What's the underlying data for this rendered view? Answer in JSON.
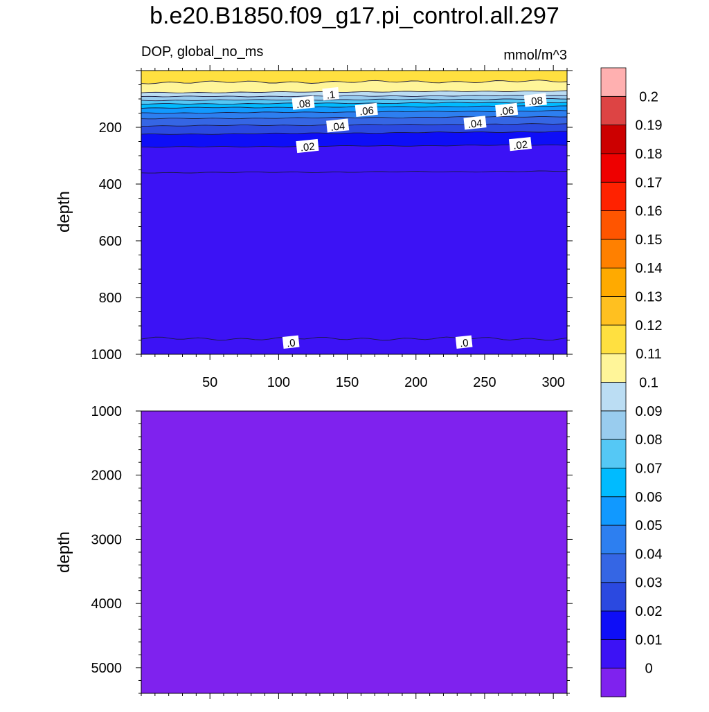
{
  "chart_data": {
    "type": "contour",
    "title": "b.e20.B1850.f09_g17.pi_control.all.297",
    "variable_label": "DOP, global_no_ms",
    "units_label": "mmol/m^3",
    "grid": false,
    "colorbar": {
      "position": "right",
      "levels": [
        "0",
        "0.01",
        "0.02",
        "0.03",
        "0.04",
        "0.05",
        "0.06",
        "0.07",
        "0.08",
        "0.09",
        "0.1",
        "0.11",
        "0.12",
        "0.13",
        "0.14",
        "0.15",
        "0.16",
        "0.17",
        "0.18",
        "0.19",
        "0.2"
      ],
      "colors": [
        "#7f22ee",
        "#3c12f5",
        "#0e0ef7",
        "#2b49e0",
        "#3566e4",
        "#2d7ff0",
        "#1199ff",
        "#00bbff",
        "#55c8f5",
        "#99ccee",
        "#bbddf3",
        "#fff599",
        "#ffe040",
        "#ffc020",
        "#ffaa00",
        "#ff8000",
        "#ff5500",
        "#ff2200",
        "#ee0000",
        "#cc0000",
        "#dd4444",
        "#ffb0b0"
      ]
    },
    "panels": [
      {
        "name": "upper",
        "xlim": [
          0,
          310
        ],
        "ylim": [
          0,
          1000
        ],
        "y_inverted": true,
        "ylabel": "depth",
        "x_ticks": [
          "50",
          "100",
          "150",
          "200",
          "250",
          "300"
        ],
        "y_ticks": [
          "200",
          "400",
          "600",
          "800",
          "1000"
        ],
        "contour_lines": [
          {
            "level": 0.11,
            "left_depth": 42,
            "right_depth": 38
          },
          {
            "level": 0.1,
            "left_depth": 78,
            "right_depth": 72
          },
          {
            "level": 0.09,
            "left_depth": 92,
            "right_depth": 88
          },
          {
            "level": 0.08,
            "left_depth": 105,
            "right_depth": 100
          },
          {
            "level": 0.07,
            "left_depth": 118,
            "right_depth": 112
          },
          {
            "level": 0.06,
            "left_depth": 132,
            "right_depth": 125
          },
          {
            "level": 0.05,
            "left_depth": 150,
            "right_depth": 142
          },
          {
            "level": 0.04,
            "left_depth": 170,
            "right_depth": 162
          },
          {
            "level": 0.03,
            "left_depth": 195,
            "right_depth": 188
          },
          {
            "level": 0.02,
            "left_depth": 225,
            "right_depth": 215
          },
          {
            "level": 0.01,
            "left_depth": 270,
            "right_depth": 262
          },
          {
            "level": 0.005,
            "left_depth": 360,
            "right_depth": 355
          },
          {
            "level": 0.0,
            "left_depth": 945,
            "right_depth": 945
          }
        ],
        "contour_labels": [
          {
            "text": ".08",
            "x": 118,
            "depth": 115
          },
          {
            "text": ".1",
            "x": 138,
            "depth": 83
          },
          {
            "text": ".06",
            "x": 164,
            "depth": 140
          },
          {
            "text": ".04",
            "x": 143,
            "depth": 195
          },
          {
            "text": ".02",
            "x": 121,
            "depth": 267
          },
          {
            "text": ".04",
            "x": 243,
            "depth": 185
          },
          {
            "text": ".06",
            "x": 266,
            "depth": 140
          },
          {
            "text": ".08",
            "x": 287,
            "depth": 105
          },
          {
            "text": ".02",
            "x": 276,
            "depth": 260
          },
          {
            "text": ".0",
            "x": 109,
            "depth": 958
          },
          {
            "text": ".0",
            "x": 235,
            "depth": 958
          }
        ]
      },
      {
        "name": "lower",
        "xlim": [
          0,
          310
        ],
        "ylim": [
          1000,
          5400
        ],
        "y_inverted": true,
        "ylabel": "depth",
        "y_ticks": [
          "1000",
          "2000",
          "3000",
          "4000",
          "5000"
        ],
        "fill_level_index": 0
      }
    ]
  }
}
